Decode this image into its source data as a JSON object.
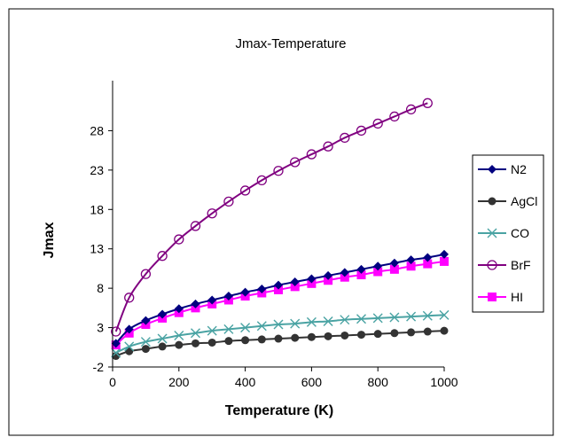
{
  "chart_data": {
    "type": "line",
    "title": "Jmax-Temperature",
    "xlabel": "Temperature (K)",
    "ylabel": "Jmax",
    "xlim": [
      0,
      1000
    ],
    "ylim": [
      -2,
      33
    ],
    "x_ticks": [
      0,
      200,
      400,
      600,
      800,
      1000
    ],
    "y_ticks": [
      -2,
      3,
      8,
      13,
      18,
      23,
      28
    ],
    "grid": false,
    "legend_position": "right",
    "series": [
      {
        "name": "N2",
        "color": "#000080",
        "marker": "diamond",
        "x": [
          10,
          50,
          100,
          150,
          200,
          250,
          300,
          350,
          400,
          450,
          500,
          550,
          600,
          650,
          700,
          750,
          800,
          850,
          900,
          950,
          1000
        ],
        "y": [
          1.0,
          2.8,
          3.9,
          4.7,
          5.4,
          6.0,
          6.5,
          7.0,
          7.5,
          7.9,
          8.4,
          8.8,
          9.2,
          9.6,
          10.0,
          10.4,
          10.8,
          11.2,
          11.6,
          11.9,
          12.3
        ]
      },
      {
        "name": "AgCl",
        "color": "#333333",
        "marker": "circle",
        "x": [
          10,
          50,
          100,
          150,
          200,
          250,
          300,
          350,
          400,
          450,
          500,
          550,
          600,
          650,
          700,
          750,
          800,
          850,
          900,
          950,
          1000
        ],
        "y": [
          -0.6,
          0.0,
          0.3,
          0.6,
          0.8,
          1.0,
          1.1,
          1.3,
          1.4,
          1.5,
          1.6,
          1.7,
          1.8,
          1.9,
          2.0,
          2.1,
          2.2,
          2.3,
          2.4,
          2.5,
          2.6
        ]
      },
      {
        "name": "CO",
        "color": "#4AA3A3",
        "marker": "x",
        "x": [
          10,
          50,
          100,
          150,
          200,
          250,
          300,
          350,
          400,
          450,
          500,
          550,
          600,
          650,
          700,
          750,
          800,
          850,
          900,
          950,
          1000
        ],
        "y": [
          -0.2,
          0.6,
          1.2,
          1.6,
          2.0,
          2.3,
          2.6,
          2.8,
          3.0,
          3.2,
          3.4,
          3.5,
          3.7,
          3.8,
          4.0,
          4.1,
          4.2,
          4.3,
          4.4,
          4.5,
          4.6
        ]
      },
      {
        "name": "BrF",
        "color": "#800080",
        "marker": "open-circle",
        "x": [
          10,
          50,
          100,
          150,
          200,
          250,
          300,
          350,
          400,
          450,
          500,
          550,
          600,
          650,
          700,
          750,
          800,
          850,
          900,
          950
        ],
        "y": [
          2.5,
          6.8,
          9.8,
          12.1,
          14.2,
          15.9,
          17.5,
          19.0,
          20.4,
          21.7,
          22.9,
          24.0,
          25.0,
          26.0,
          27.1,
          28.0,
          28.9,
          29.8,
          30.7,
          31.5
        ]
      },
      {
        "name": "HI",
        "color": "#FF00FF",
        "marker": "square",
        "x": [
          10,
          50,
          100,
          150,
          200,
          250,
          300,
          350,
          400,
          450,
          500,
          550,
          600,
          650,
          700,
          750,
          800,
          850,
          900,
          950,
          1000
        ],
        "y": [
          0.8,
          2.3,
          3.4,
          4.2,
          4.9,
          5.5,
          6.0,
          6.5,
          7.0,
          7.4,
          7.8,
          8.2,
          8.6,
          9.0,
          9.4,
          9.7,
          10.1,
          10.4,
          10.8,
          11.1,
          11.4
        ]
      }
    ]
  }
}
